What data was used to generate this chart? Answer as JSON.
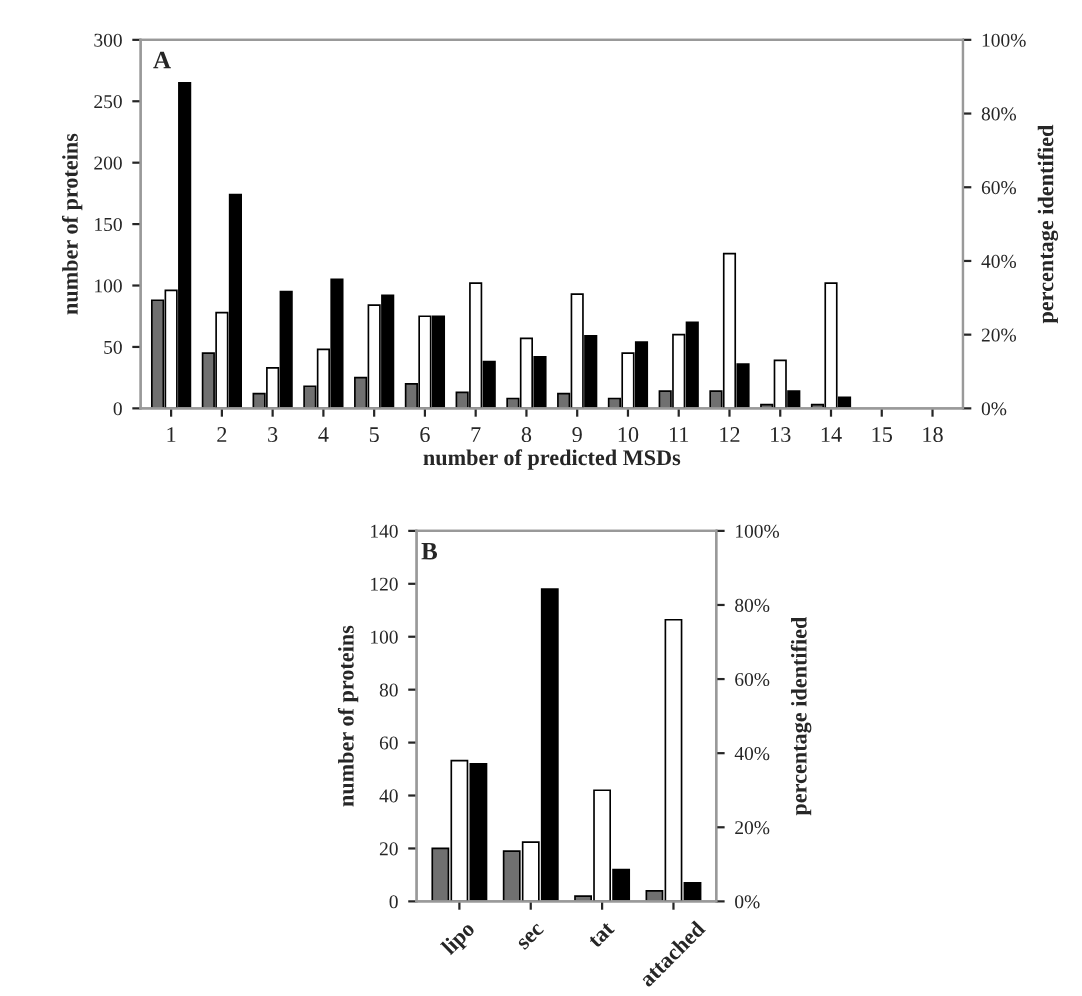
{
  "chart_data": [
    {
      "type": "bar",
      "xlabel": "number of predicted MSDs",
      "ylabel": "number of proteins",
      "y2label": "percentage identified",
      "annotations": [
        "A"
      ],
      "categories": [
        "1",
        "2",
        "3",
        "4",
        "5",
        "6",
        "7",
        "8",
        "9",
        "10",
        "11",
        "12",
        "13",
        "14",
        "15",
        "18"
      ],
      "series": [
        {
          "color": "#707070",
          "values": [
            88,
            45,
            12,
            18,
            25,
            20,
            13,
            8,
            12,
            8,
            14,
            14,
            3,
            3,
            0,
            0
          ]
        },
        {
          "color": "#ffffff",
          "axis": "y2",
          "values": [
            32,
            26,
            11,
            16,
            28,
            25,
            34,
            19,
            31,
            15,
            20,
            42,
            13,
            34,
            0,
            0
          ]
        },
        {
          "color": "#000000",
          "values": [
            265,
            174,
            95,
            105,
            92,
            75,
            38,
            42,
            59,
            54,
            70,
            36,
            14,
            9,
            0,
            0
          ]
        }
      ],
      "ylim": [
        0,
        300
      ],
      "yticks": [
        0,
        50,
        100,
        150,
        200,
        250,
        300
      ],
      "y2lim": [
        0,
        100
      ],
      "y2ticks": [
        {
          "value": 0,
          "label": "0%"
        },
        {
          "value": 20,
          "label": "20%"
        },
        {
          "value": 40,
          "label": "40%"
        },
        {
          "value": 60,
          "label": "60%"
        },
        {
          "value": 80,
          "label": "80%"
        },
        {
          "value": 100,
          "label": "100%"
        }
      ]
    },
    {
      "type": "bar",
      "ylabel": "number of proteins",
      "y2label": "percentage identified",
      "annotations": [
        "B"
      ],
      "categories": [
        "lipo",
        "sec",
        "tat",
        "attached"
      ],
      "series": [
        {
          "color": "#707070",
          "values": [
            20,
            19,
            2,
            4
          ]
        },
        {
          "color": "#ffffff",
          "axis": "y2",
          "values": [
            38,
            16,
            30,
            76
          ]
        },
        {
          "color": "#000000",
          "values": [
            52,
            118,
            12,
            7
          ]
        }
      ],
      "ylim": [
        0,
        140
      ],
      "yticks": [
        0,
        20,
        40,
        60,
        80,
        100,
        120,
        140
      ],
      "y2lim": [
        0,
        100
      ],
      "y2ticks": [
        {
          "value": 0,
          "label": "0%"
        },
        {
          "value": 20,
          "label": "20%"
        },
        {
          "value": 40,
          "label": "40%"
        },
        {
          "value": 60,
          "label": "60%"
        },
        {
          "value": 80,
          "label": "80%"
        },
        {
          "value": 100,
          "label": "100%"
        }
      ]
    }
  ]
}
